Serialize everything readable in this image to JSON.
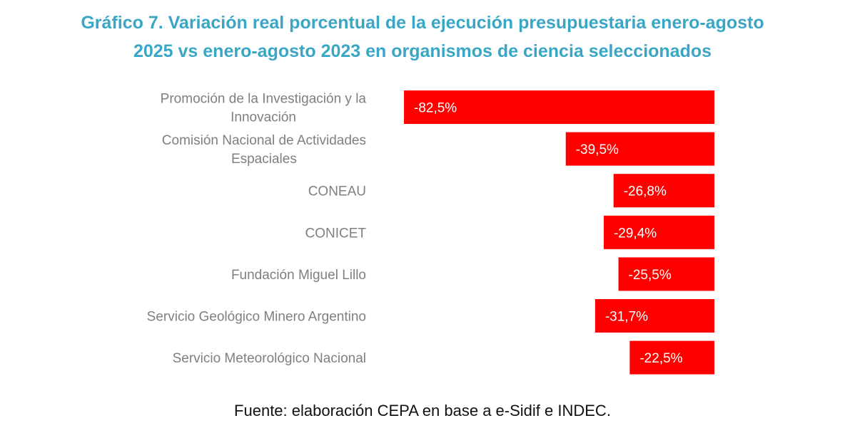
{
  "chart_data": {
    "type": "bar",
    "orientation": "horizontal",
    "title_lines": [
      "Gráfico 7. Variación real porcentual de la ejecución presupuestaria enero-agosto",
      "2025 vs enero-agosto 2023 en organismos de ciencia seleccionados"
    ],
    "categories": [
      [
        "Promoción de la Investigación y la",
        "Innovación"
      ],
      [
        "Comisión Nacional de Actividades",
        "Espaciales"
      ],
      [
        "CONEAU"
      ],
      [
        "CONICET"
      ],
      [
        "Fundación Miguel Lillo"
      ],
      [
        "Servicio Geológico Minero Argentino"
      ],
      [
        "Servicio Meteorológico Nacional"
      ]
    ],
    "values": [
      -82.5,
      -39.5,
      -26.8,
      -29.4,
      -25.5,
      -31.7,
      -22.5
    ],
    "data_labels": [
      "-82,5%",
      "-39,5%",
      "-26,8%",
      "-29,4%",
      "-25,5%",
      "-31,7%",
      "-22,5%"
    ],
    "xlim": [
      -82.5,
      0
    ],
    "grid": false,
    "bar_color": "#ff0000",
    "source": "Fuente: elaboración CEPA en base a e-Sidif e INDEC."
  }
}
